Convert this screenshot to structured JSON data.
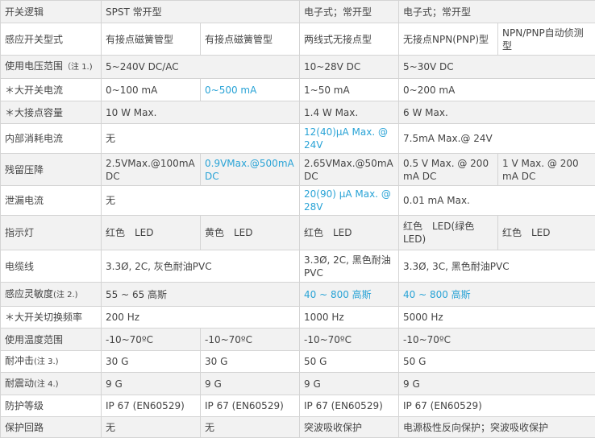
{
  "table": {
    "rows": [
      [
        "开关逻辑",
        "SPST 常开型",
        "电子式；常开型",
        "电子式；常开型"
      ],
      [
        "感应开关型式",
        "有接点磁簧管型",
        "有接点磁簧管型",
        "两线式无接点型",
        "无接点NPN(PNP)型",
        "NPN/PNP自动侦测型"
      ],
      [
        {
          "label": "使用电压范围",
          "note": "（注 1.)"
        },
        "5~240V DC/AC",
        "10~28V DC",
        "5~30V DC"
      ],
      [
        "＊大开关电流",
        "0~100 mA",
        "0~500 mA",
        "1~50 mA",
        "0~200 mA"
      ],
      [
        "＊大接点容量",
        "10 W Max.",
        "1.4 W Max.",
        "6 W Max."
      ],
      [
        "内部消耗电流",
        "无",
        "12(40)μA Max. @ 24V",
        "7.5mA Max.@ 24V"
      ],
      [
        "残留压降",
        "2.5VMax.@100mA DC",
        "0.9VMax.@500mA DC",
        "2.65VMax.@50mA DC",
        "0.5 V Max. @ 200 mA DC",
        "1 V Max. @ 200 mA DC"
      ],
      [
        "泄漏电流",
        "无",
        "20(90) μA Max. @ 28V",
        "0.01 mA Max."
      ],
      [
        "指示灯",
        "红色　LED",
        "黄色　LED",
        "红色　LED",
        "红色　LED(绿色LED)",
        "红色　LED"
      ],
      [
        "电缆线",
        "3.3Ø, 2C, 灰色耐油PVC",
        "3.3Ø, 2C, 黑色耐油PVC",
        "3.3Ø, 3C, 黑色耐油PVC"
      ],
      [
        {
          "label": "感应灵敏度",
          "note": "(注 2.)"
        },
        "55 ~ 65 高斯",
        "40 ~ 800 高斯",
        "40 ~ 800 高斯"
      ],
      [
        "＊大开关切换频率",
        "200 Hz",
        "1000 Hz",
        "5000 Hz"
      ],
      [
        "使用温度范围",
        "-10~70ºC",
        "-10~70ºC",
        "-10~70ºC",
        "-10~70ºC"
      ],
      [
        {
          "label": "耐冲击",
          "note": "(注 3.)"
        },
        "30 G",
        "30 G",
        "50 G",
        "50 G"
      ],
      [
        {
          "label": "耐震动",
          "note": "(注 4.)"
        },
        "9 G",
        "9 G",
        "9 G",
        "9 G"
      ],
      [
        "防护等级",
        "IP 67 (EN60529)",
        "IP 67 (EN60529)",
        "IP 67 (EN60529)",
        "IP 67 (EN60529)"
      ],
      [
        "保护回路",
        "无",
        "无",
        "突波吸收保护",
        "电源极性反向保护；突波吸收保护"
      ]
    ]
  }
}
